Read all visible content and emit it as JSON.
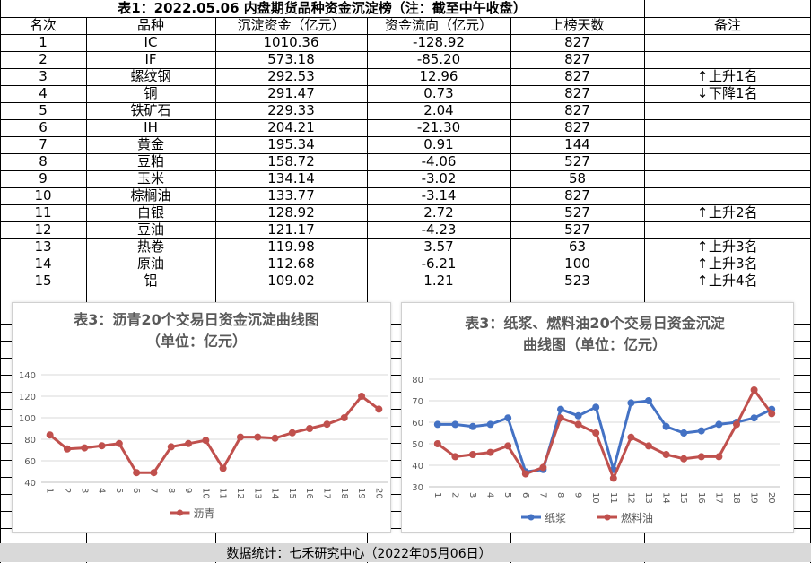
{
  "table": {
    "title": "表1：2022.05.06 内盘期货品种资金沉淀榜（注：截至中午收盘）",
    "headers": [
      "名次",
      "品种",
      "沉淀资金（亿元）",
      "资金流向（亿元）",
      "上榜天数",
      "备注"
    ],
    "rows": [
      {
        "rank": "1",
        "name": "IC",
        "deposit": "1010.36",
        "flow": "-128.92",
        "days": "827",
        "note": ""
      },
      {
        "rank": "2",
        "name": "IF",
        "deposit": "573.18",
        "flow": "-85.20",
        "days": "827",
        "note": ""
      },
      {
        "rank": "3",
        "name": "螺纹钢",
        "deposit": "292.53",
        "flow": "12.96",
        "days": "827",
        "note": "上升1名",
        "dir": "up"
      },
      {
        "rank": "4",
        "name": "铜",
        "deposit": "291.47",
        "flow": "0.73",
        "days": "827",
        "note": "下降1名",
        "dir": "down"
      },
      {
        "rank": "5",
        "name": "铁矿石",
        "deposit": "229.33",
        "flow": "2.04",
        "days": "827",
        "note": ""
      },
      {
        "rank": "6",
        "name": "IH",
        "deposit": "204.21",
        "flow": "-21.30",
        "days": "827",
        "note": ""
      },
      {
        "rank": "7",
        "name": "黄金",
        "deposit": "195.34",
        "flow": "0.91",
        "days": "144",
        "note": ""
      },
      {
        "rank": "8",
        "name": "豆粕",
        "deposit": "158.72",
        "flow": "-4.06",
        "days": "527",
        "note": ""
      },
      {
        "rank": "9",
        "name": "玉米",
        "deposit": "134.14",
        "flow": "-3.02",
        "days": "58",
        "note": ""
      },
      {
        "rank": "10",
        "name": "棕榈油",
        "deposit": "133.77",
        "flow": "-3.14",
        "days": "827",
        "note": ""
      },
      {
        "rank": "11",
        "name": "白银",
        "deposit": "128.92",
        "flow": "2.72",
        "days": "527",
        "note": "上升2名",
        "dir": "up"
      },
      {
        "rank": "12",
        "name": "豆油",
        "deposit": "121.17",
        "flow": "-4.23",
        "days": "527",
        "note": ""
      },
      {
        "rank": "13",
        "name": "热卷",
        "deposit": "119.98",
        "flow": "3.57",
        "days": "63",
        "note": "上升3名",
        "dir": "up"
      },
      {
        "rank": "14",
        "name": "原油",
        "deposit": "112.68",
        "flow": "-6.21",
        "days": "100",
        "note": "上升3名",
        "dir": "up"
      },
      {
        "rank": "15",
        "name": "铝",
        "deposit": "109.02",
        "flow": "1.21",
        "days": "523",
        "note": "上升4名",
        "dir": "up"
      }
    ]
  },
  "footer": {
    "text": "数据统计：七禾研究中心（2022年05月06日）"
  },
  "colors": {
    "blue": "#4472c4",
    "red": "#c0504d",
    "grid": "#d9d9d9",
    "axis": "#595959",
    "footer_bg": "#d9d9d9"
  },
  "chart_data": [
    {
      "type": "line",
      "title": "表3：沥青20个交易日资金沉淀曲线图",
      "subtitle": "（单位：亿元）",
      "x": [
        "1",
        "2",
        "3",
        "4",
        "5",
        "6",
        "7",
        "8",
        "9",
        "10",
        "11",
        "12",
        "13",
        "14",
        "15",
        "16",
        "17",
        "18",
        "19",
        "20"
      ],
      "ylim": [
        40,
        140
      ],
      "yticks": [
        40,
        60,
        80,
        100,
        120,
        140
      ],
      "grid": true,
      "legend": "bottom",
      "series": [
        {
          "name": "沥青",
          "color": "#c0504d",
          "values": [
            84,
            71,
            72,
            74,
            76,
            49,
            49,
            73,
            76,
            79,
            53,
            82,
            82,
            81,
            86,
            90,
            94,
            100,
            120,
            108
          ]
        }
      ]
    },
    {
      "type": "line",
      "title": "表3：纸浆、燃料油20个交易日资金沉淀",
      "subtitle": "曲线图（单位：亿元）",
      "x": [
        "1",
        "2",
        "3",
        "4",
        "5",
        "6",
        "7",
        "8",
        "9",
        "10",
        "11",
        "12",
        "13",
        "14",
        "15",
        "16",
        "17",
        "18",
        "19",
        "20"
      ],
      "ylim": [
        30,
        80
      ],
      "yticks": [
        30,
        40,
        50,
        60,
        70,
        80
      ],
      "grid": true,
      "legend": "bottom",
      "series": [
        {
          "name": "纸浆",
          "color": "#4472c4",
          "values": [
            59,
            59,
            58,
            59,
            62,
            37,
            38,
            66,
            63,
            67,
            38,
            69,
            70,
            58,
            55,
            56,
            59,
            60,
            62,
            66
          ]
        },
        {
          "name": "燃料油",
          "color": "#c0504d",
          "values": [
            50,
            44,
            45,
            46,
            49,
            36,
            39,
            62,
            59,
            55,
            34,
            53,
            49,
            45,
            43,
            44,
            44,
            59,
            75,
            64
          ]
        }
      ]
    }
  ]
}
